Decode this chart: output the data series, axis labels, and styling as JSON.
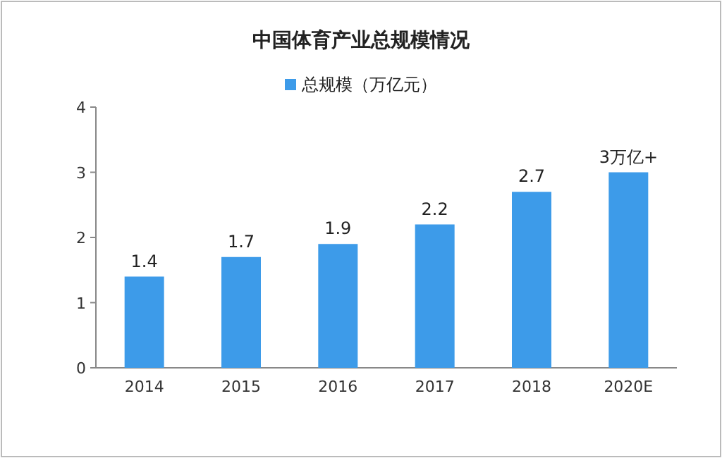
{
  "chart_data": {
    "type": "bar",
    "title": "中国体育产业总规模情况",
    "categories": [
      "2014",
      "2015",
      "2016",
      "2017",
      "2018",
      "2020E"
    ],
    "series": [
      {
        "name": "总规模（万亿元）",
        "color": "#3d9be9",
        "values": [
          1.4,
          1.7,
          1.9,
          2.2,
          2.7,
          3
        ],
        "value_labels": [
          "1.4",
          "1.7",
          "1.9",
          "2.2",
          "2.7",
          "3万亿+"
        ]
      }
    ],
    "ylim": [
      0,
      4
    ],
    "yticks": [
      0,
      1,
      2,
      3,
      4
    ],
    "legend": "top",
    "grid": false
  }
}
